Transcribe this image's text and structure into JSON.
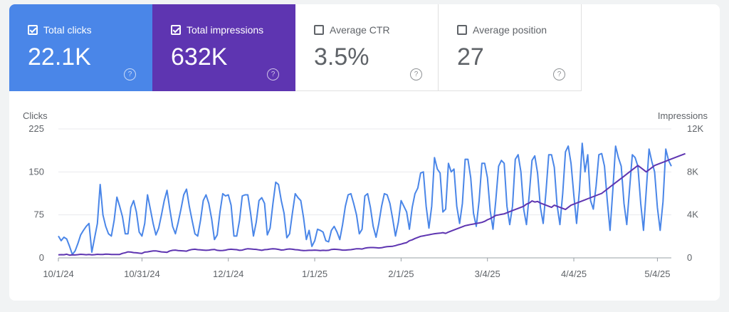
{
  "metrics": [
    {
      "label": "Total clicks",
      "value": "22.1K",
      "checked": true
    },
    {
      "label": "Total impressions",
      "value": "632K",
      "checked": true
    },
    {
      "label": "Average CTR",
      "value": "3.5%",
      "checked": false
    },
    {
      "label": "Average position",
      "value": "27",
      "checked": false
    }
  ],
  "help_icon": "?",
  "colors": {
    "clicks": "#4a86e8",
    "impressions": "#5e35b1",
    "grid": "#e8eaed",
    "axis": "#5f6368"
  },
  "chart_data": {
    "type": "line",
    "left_axis_label": "Clicks",
    "right_axis_label": "Impressions",
    "y_left_ticks": [
      "0",
      "75",
      "150",
      "225"
    ],
    "y_right_ticks": [
      "0",
      "4K",
      "8K",
      "12K"
    ],
    "ylim_left": [
      0,
      225
    ],
    "ylim_right": [
      0,
      12000
    ],
    "x_tick_labels": [
      "10/1/24",
      "10/31/24",
      "12/1/24",
      "1/1/25",
      "2/1/25",
      "3/4/25",
      "4/4/25",
      "5/4/25"
    ],
    "x_tick_index": [
      0,
      30,
      61,
      92,
      123,
      154,
      185,
      215
    ],
    "series": [
      {
        "name": "Total clicks",
        "axis": "left",
        "values": [
          38,
          30,
          36,
          33,
          20,
          6,
          12,
          25,
          40,
          48,
          55,
          60,
          10,
          35,
          60,
          128,
          75,
          55,
          42,
          38,
          65,
          106,
          90,
          72,
          42,
          42,
          88,
          100,
          80,
          45,
          38,
          60,
          110,
          85,
          60,
          40,
          52,
          75,
          100,
          118,
          85,
          55,
          42,
          62,
          85,
          110,
          120,
          90,
          65,
          42,
          38,
          65,
          100,
          110,
          95,
          68,
          32,
          40,
          80,
          112,
          108,
          110,
          92,
          38,
          38,
          65,
          108,
          110,
          110,
          78,
          38,
          62,
          100,
          105,
          95,
          40,
          52,
          95,
          132,
          128,
          100,
          78,
          35,
          42,
          78,
          112,
          105,
          100,
          70,
          32,
          48,
          20,
          30,
          50,
          48,
          45,
          30,
          28,
          48,
          55,
          45,
          32,
          58,
          90,
          110,
          112,
          95,
          75,
          42,
          50,
          108,
          112,
          88,
          55,
          36,
          60,
          90,
          112,
          110,
          95,
          68,
          38,
          62,
          100,
          90,
          80,
          50,
          88,
          112,
          122,
          148,
          150,
          90,
          52,
          90,
          175,
          155,
          148,
          80,
          85,
          165,
          150,
          155,
          90,
          60,
          95,
          172,
          172,
          140,
          78,
          55,
          100,
          165,
          165,
          140,
          82,
          50,
          100,
          160,
          170,
          165,
          90,
          58,
          90,
          172,
          180,
          150,
          85,
          58,
          110,
          170,
          178,
          148,
          88,
          60,
          115,
          180,
          180,
          158,
          92,
          58,
          112,
          185,
          195,
          165,
          110,
          60,
          118,
          200,
          150,
          180,
          100,
          85,
          125,
          180,
          182,
          160,
          100,
          48,
          118,
          195,
          175,
          160,
          95,
          58,
          120,
          180,
          175,
          160,
          95,
          48,
          118,
          190,
          168,
          150,
          88,
          48,
          98,
          190,
          170,
          160
        ]
      },
      {
        "name": "Total impressions",
        "axis": "right",
        "values": [
          280,
          300,
          290,
          340,
          250,
          280,
          270,
          300,
          330,
          310,
          290,
          310,
          280,
          300,
          330,
          320,
          310,
          350,
          340,
          320,
          310,
          310,
          320,
          420,
          480,
          560,
          540,
          490,
          470,
          440,
          420,
          540,
          560,
          600,
          640,
          650,
          600,
          560,
          540,
          520,
          640,
          700,
          720,
          680,
          660,
          640,
          620,
          720,
          780,
          800,
          760,
          740,
          720,
          700,
          720,
          760,
          780,
          700,
          680,
          690,
          720,
          780,
          800,
          780,
          760,
          700,
          720,
          800,
          850,
          830,
          800,
          790,
          740,
          700,
          760,
          780,
          820,
          850,
          830,
          790,
          730,
          750,
          800,
          830,
          800,
          760,
          740,
          700,
          680,
          690,
          700,
          700,
          720,
          700,
          680,
          700,
          690,
          700,
          780,
          800,
          790,
          760,
          720,
          720,
          740,
          760,
          800,
          850,
          840,
          820,
          900,
          940,
          960,
          960,
          940,
          920,
          940,
          1000,
          1040,
          1060,
          1080,
          1140,
          1220,
          1280,
          1360,
          1420,
          1600,
          1680,
          1800,
          1900,
          2000,
          2050,
          2100,
          2150,
          2200,
          2250,
          2280,
          2300,
          2350,
          2280,
          2400,
          2500,
          2600,
          2700,
          2800,
          2900,
          3000,
          3050,
          3100,
          3150,
          3200,
          3250,
          3300,
          3400,
          3550,
          3650,
          3800,
          3950,
          4000,
          4050,
          4100,
          4200,
          4300,
          4400,
          4500,
          4600,
          4700,
          4800,
          5000,
          5100,
          5300,
          5200,
          5250,
          5100,
          5000,
          4900,
          4800,
          4700,
          4900,
          4800,
          4700,
          4600,
          4500,
          4700,
          4900,
          5000,
          5100,
          5200,
          5300,
          5400,
          5500,
          5600,
          5700,
          5800,
          5900,
          6000,
          6200,
          6400,
          6600,
          6800,
          7000,
          7200,
          7400,
          7600,
          7800,
          8000,
          8200,
          8400,
          8600,
          8400,
          8200,
          8000,
          8200,
          8400,
          8600,
          8700,
          8800,
          8900,
          9000,
          9100,
          9200,
          9300,
          9400,
          9500,
          9600,
          9700
        ]
      }
    ]
  }
}
